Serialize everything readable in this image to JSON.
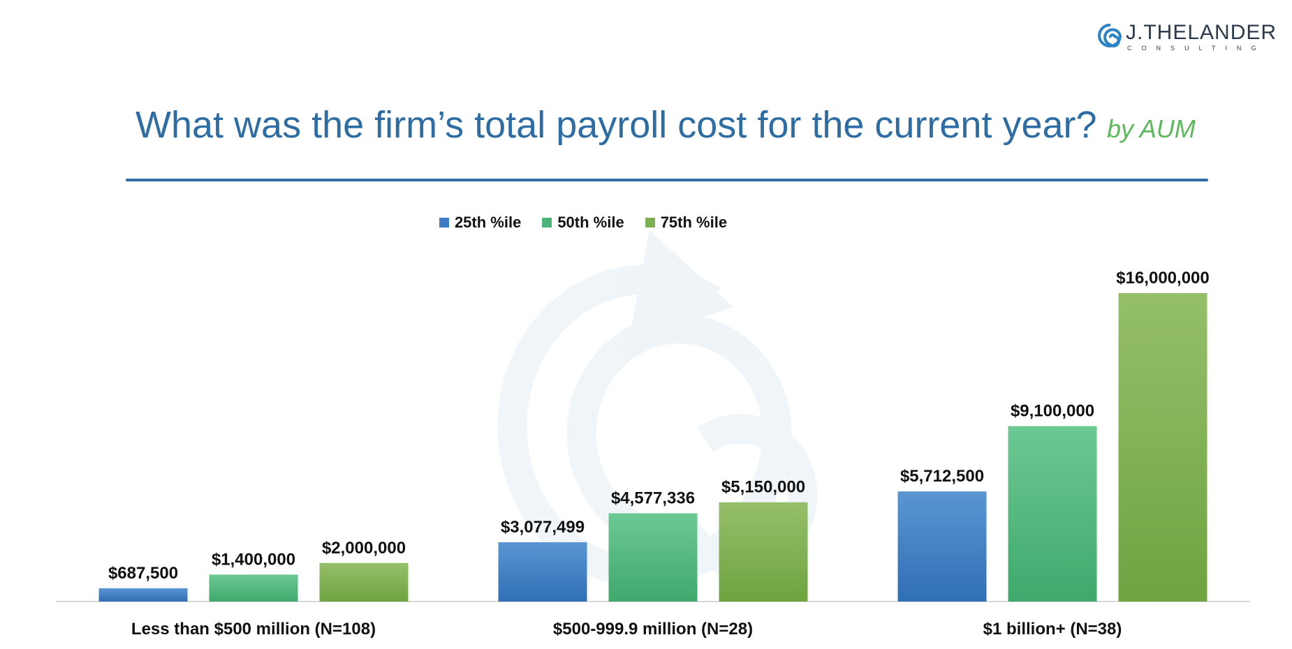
{
  "logo": {
    "name": "J.THELANDER",
    "tagline": "CONSULTING"
  },
  "header": {
    "title": "What was the firm’s total payroll cost for the current year?",
    "subtitle": "by AUM"
  },
  "colors": {
    "accent": "#2e6da4",
    "subtitle": "#5cb85c",
    "p25": "#3b7cc4",
    "p50": "#4cb57a",
    "p75": "#7dae4f"
  },
  "chart_data": {
    "type": "bar",
    "categories": [
      "Less than $500 million (N=108)",
      "$500-999.9 million (N=28)",
      "$1 billion+ (N=38)"
    ],
    "series": [
      {
        "name": "25th %ile",
        "values": [
          687500,
          3077499,
          5712500
        ],
        "labels": [
          "$687,500",
          "$3,077,499",
          "$5,712,500"
        ]
      },
      {
        "name": "50th %ile",
        "values": [
          1400000,
          4577336,
          9100000
        ],
        "labels": [
          "$1,400,000",
          "$4,577,336",
          "$9,100,000"
        ]
      },
      {
        "name": "75th %ile",
        "values": [
          2000000,
          5150000,
          16000000
        ],
        "labels": [
          "$2,000,000",
          "$5,150,000",
          "$16,000,000"
        ]
      }
    ],
    "ylim": [
      0,
      16000000
    ],
    "legend": "top-center",
    "grid": false
  }
}
